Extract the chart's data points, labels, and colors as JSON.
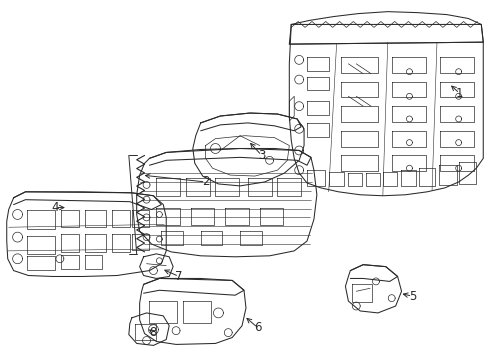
{
  "background_color": "#ffffff",
  "line_color": "#2a2a2a",
  "lw": 0.75,
  "lw_thin": 0.4,
  "lw_detail": 0.5
}
